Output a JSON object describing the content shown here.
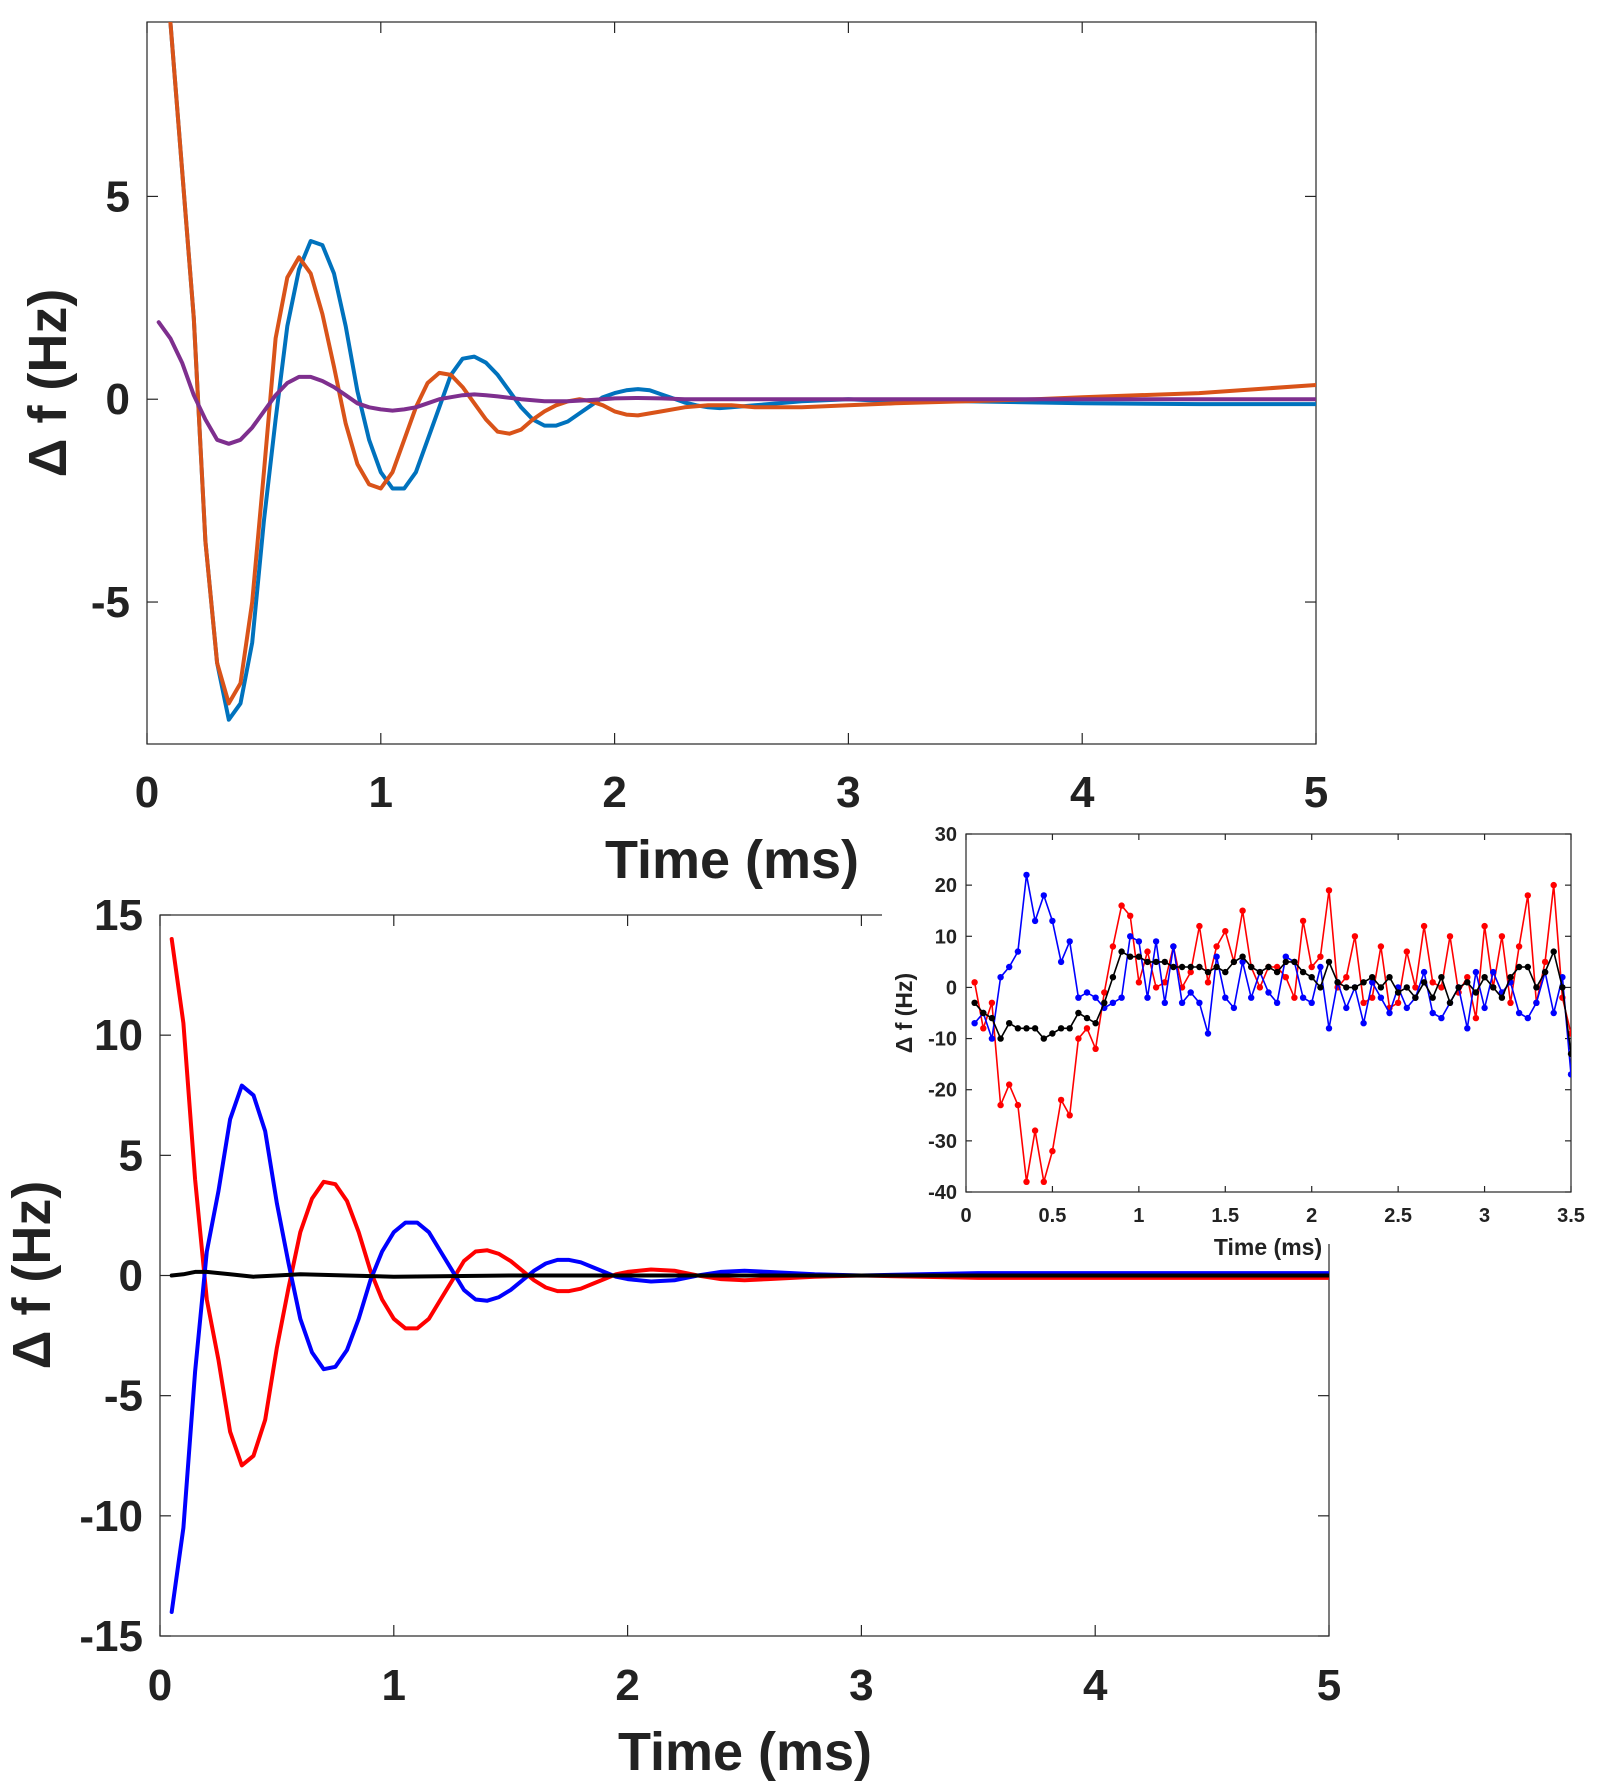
{
  "chart_data": [
    {
      "type": "line",
      "xlabel": "Time (ms)",
      "ylabel": "Δ f (Hz)",
      "xlim": [
        0,
        5
      ],
      "ylim": [
        -8.5,
        9.3
      ],
      "xticks": [
        0,
        1,
        2,
        3,
        4,
        5
      ],
      "yticks": [
        -5,
        0,
        5
      ],
      "grid": false,
      "series": [
        {
          "color": "#0072BD",
          "x": [
            0.1,
            0.2,
            0.25,
            0.3,
            0.35,
            0.4,
            0.45,
            0.5,
            0.55,
            0.6,
            0.65,
            0.7,
            0.75,
            0.8,
            0.85,
            0.9,
            0.95,
            1.0,
            1.05,
            1.1,
            1.15,
            1.2,
            1.25,
            1.3,
            1.35,
            1.4,
            1.45,
            1.5,
            1.55,
            1.6,
            1.65,
            1.7,
            1.75,
            1.8,
            1.85,
            1.9,
            1.95,
            2.0,
            2.05,
            2.1,
            2.15,
            2.2,
            2.25,
            2.3,
            2.35,
            2.4,
            2.45,
            2.5,
            2.6,
            2.8,
            3.0,
            3.2,
            3.5,
            4.0,
            4.5,
            5.0
          ],
          "y": [
            9.3,
            2.0,
            -3.5,
            -6.5,
            -7.9,
            -7.5,
            -6.0,
            -3.0,
            -0.5,
            1.8,
            3.2,
            3.9,
            3.8,
            3.1,
            1.8,
            0.2,
            -1.0,
            -1.8,
            -2.2,
            -2.2,
            -1.8,
            -1.0,
            -0.2,
            0.6,
            1.0,
            1.05,
            0.9,
            0.6,
            0.2,
            -0.2,
            -0.5,
            -0.65,
            -0.65,
            -0.55,
            -0.35,
            -0.15,
            0.05,
            0.15,
            0.22,
            0.25,
            0.22,
            0.12,
            0.02,
            -0.08,
            -0.15,
            -0.2,
            -0.22,
            -0.2,
            -0.15,
            -0.05,
            0.0,
            -0.05,
            -0.05,
            -0.1,
            -0.12,
            -0.12
          ]
        },
        {
          "color": "#D95319",
          "x": [
            0.1,
            0.2,
            0.25,
            0.3,
            0.35,
            0.4,
            0.45,
            0.5,
            0.55,
            0.6,
            0.65,
            0.7,
            0.75,
            0.8,
            0.85,
            0.9,
            0.95,
            1.0,
            1.05,
            1.1,
            1.15,
            1.2,
            1.25,
            1.3,
            1.35,
            1.4,
            1.45,
            1.5,
            1.55,
            1.6,
            1.65,
            1.7,
            1.75,
            1.8,
            1.85,
            1.9,
            1.95,
            2.0,
            2.05,
            2.1,
            2.2,
            2.3,
            2.4,
            2.5,
            2.6,
            2.8,
            3.0,
            3.2,
            3.5,
            3.8,
            4.0,
            4.5,
            5.0
          ],
          "y": [
            9.3,
            2.0,
            -3.5,
            -6.5,
            -7.5,
            -7.0,
            -5.0,
            -1.8,
            1.5,
            3.0,
            3.5,
            3.1,
            2.1,
            0.8,
            -0.6,
            -1.6,
            -2.1,
            -2.2,
            -1.8,
            -1.0,
            -0.2,
            0.4,
            0.65,
            0.6,
            0.3,
            -0.1,
            -0.5,
            -0.8,
            -0.85,
            -0.75,
            -0.5,
            -0.3,
            -0.15,
            -0.05,
            0.0,
            -0.05,
            -0.15,
            -0.3,
            -0.38,
            -0.4,
            -0.3,
            -0.2,
            -0.15,
            -0.15,
            -0.2,
            -0.2,
            -0.15,
            -0.1,
            -0.05,
            0.0,
            0.05,
            0.15,
            0.35
          ]
        },
        {
          "color": "#7E2F8E",
          "x": [
            0.05,
            0.1,
            0.15,
            0.2,
            0.25,
            0.3,
            0.35,
            0.4,
            0.45,
            0.5,
            0.55,
            0.6,
            0.65,
            0.7,
            0.75,
            0.8,
            0.85,
            0.9,
            0.95,
            1.0,
            1.05,
            1.1,
            1.15,
            1.2,
            1.25,
            1.3,
            1.35,
            1.4,
            1.45,
            1.5,
            1.6,
            1.7,
            1.8,
            1.9,
            2.0,
            2.1,
            2.2,
            2.3,
            2.5,
            3.0,
            3.5,
            4.0,
            4.5,
            5.0
          ],
          "y": [
            1.9,
            1.5,
            0.9,
            0.1,
            -0.5,
            -1.0,
            -1.1,
            -1.0,
            -0.7,
            -0.3,
            0.1,
            0.4,
            0.55,
            0.55,
            0.45,
            0.3,
            0.1,
            -0.1,
            -0.2,
            -0.25,
            -0.28,
            -0.25,
            -0.2,
            -0.1,
            0.0,
            0.05,
            0.1,
            0.12,
            0.1,
            0.07,
            0.0,
            -0.05,
            -0.05,
            -0.02,
            0.02,
            0.03,
            0.02,
            0.0,
            0.0,
            0.0,
            0.0,
            0.0,
            0.0,
            0.0
          ]
        }
      ]
    },
    {
      "type": "line",
      "xlabel": "Time (ms)",
      "ylabel": "Δ f (Hz)",
      "xlim": [
        0,
        5
      ],
      "ylim": [
        -15,
        15
      ],
      "xticks": [
        0,
        1,
        2,
        3,
        4,
        5
      ],
      "yticks": [
        -15,
        -10,
        -5,
        0,
        5,
        10,
        15
      ],
      "grid": false,
      "series": [
        {
          "color": "#FF0000",
          "x": [
            0.05,
            0.1,
            0.15,
            0.2,
            0.25,
            0.3,
            0.35,
            0.4,
            0.45,
            0.5,
            0.55,
            0.6,
            0.65,
            0.7,
            0.75,
            0.8,
            0.85,
            0.9,
            0.95,
            1.0,
            1.05,
            1.1,
            1.15,
            1.2,
            1.25,
            1.3,
            1.35,
            1.4,
            1.45,
            1.5,
            1.55,
            1.6,
            1.65,
            1.7,
            1.75,
            1.8,
            1.85,
            1.9,
            1.95,
            2.0,
            2.1,
            2.2,
            2.3,
            2.4,
            2.5,
            2.6,
            2.8,
            3.0,
            3.5,
            4.0,
            4.5,
            5.0
          ],
          "y": [
            14.0,
            10.5,
            4.0,
            -1.0,
            -3.5,
            -6.5,
            -7.9,
            -7.5,
            -6.0,
            -3.0,
            -0.5,
            1.8,
            3.2,
            3.9,
            3.8,
            3.1,
            1.8,
            0.2,
            -1.0,
            -1.8,
            -2.2,
            -2.2,
            -1.8,
            -1.0,
            -0.2,
            0.6,
            1.0,
            1.05,
            0.9,
            0.6,
            0.2,
            -0.2,
            -0.5,
            -0.65,
            -0.65,
            -0.55,
            -0.35,
            -0.15,
            0.05,
            0.15,
            0.25,
            0.2,
            0.0,
            -0.15,
            -0.2,
            -0.15,
            -0.05,
            0.0,
            -0.1,
            -0.1,
            -0.1,
            -0.1
          ]
        },
        {
          "color": "#0000FF",
          "x": [
            0.05,
            0.1,
            0.15,
            0.2,
            0.25,
            0.3,
            0.35,
            0.4,
            0.45,
            0.5,
            0.55,
            0.6,
            0.65,
            0.7,
            0.75,
            0.8,
            0.85,
            0.9,
            0.95,
            1.0,
            1.05,
            1.1,
            1.15,
            1.2,
            1.25,
            1.3,
            1.35,
            1.4,
            1.45,
            1.5,
            1.55,
            1.6,
            1.65,
            1.7,
            1.75,
            1.8,
            1.85,
            1.9,
            1.95,
            2.0,
            2.1,
            2.2,
            2.3,
            2.4,
            2.5,
            2.6,
            2.8,
            3.0,
            3.5,
            4.0,
            4.5,
            5.0
          ],
          "y": [
            -14.0,
            -10.5,
            -4.0,
            1.0,
            3.5,
            6.5,
            7.9,
            7.5,
            6.0,
            3.0,
            0.5,
            -1.8,
            -3.2,
            -3.9,
            -3.8,
            -3.1,
            -1.8,
            -0.2,
            1.0,
            1.8,
            2.2,
            2.2,
            1.8,
            1.0,
            0.2,
            -0.6,
            -1.0,
            -1.05,
            -0.9,
            -0.6,
            -0.2,
            0.2,
            0.5,
            0.65,
            0.65,
            0.55,
            0.35,
            0.15,
            -0.05,
            -0.15,
            -0.25,
            -0.2,
            0.0,
            0.15,
            0.2,
            0.15,
            0.05,
            0.0,
            0.1,
            0.1,
            0.1,
            0.1
          ]
        },
        {
          "color": "#000000",
          "x": [
            0.05,
            0.1,
            0.15,
            0.2,
            0.3,
            0.4,
            0.5,
            0.6,
            0.8,
            1.0,
            1.5,
            2.0,
            3.0,
            4.0,
            5.0
          ],
          "y": [
            0.0,
            0.05,
            0.15,
            0.15,
            0.05,
            -0.05,
            0.0,
            0.05,
            0.0,
            -0.05,
            0.0,
            0.0,
            0.0,
            0.0,
            0.0
          ]
        }
      ]
    },
    {
      "type": "line",
      "xlabel": "Time (ms)",
      "ylabel": "Δ f (Hz)",
      "xlim": [
        0,
        3.5
      ],
      "ylim": [
        -40,
        30
      ],
      "xticks": [
        0,
        0.5,
        1,
        1.5,
        2,
        2.5,
        3,
        3.5
      ],
      "xtick_labels": [
        "0",
        "0.5",
        "1",
        "1.5",
        "2",
        "2.5",
        "3",
        "3.5"
      ],
      "yticks": [
        -40,
        -30,
        -20,
        -10,
        0,
        10,
        20,
        30
      ],
      "grid": false,
      "markers": true,
      "series": [
        {
          "color": "#FF0000",
          "x": [
            0.05,
            0.1,
            0.15,
            0.2,
            0.25,
            0.3,
            0.35,
            0.4,
            0.45,
            0.5,
            0.55,
            0.6,
            0.65,
            0.7,
            0.75,
            0.8,
            0.85,
            0.9,
            0.95,
            1.0,
            1.05,
            1.1,
            1.15,
            1.2,
            1.25,
            1.3,
            1.35,
            1.4,
            1.45,
            1.5,
            1.55,
            1.6,
            1.65,
            1.7,
            1.75,
            1.8,
            1.85,
            1.9,
            1.95,
            2.0,
            2.05,
            2.1,
            2.15,
            2.2,
            2.25,
            2.3,
            2.35,
            2.4,
            2.45,
            2.5,
            2.55,
            2.6,
            2.65,
            2.7,
            2.75,
            2.8,
            2.85,
            2.9,
            2.95,
            3.0,
            3.05,
            3.1,
            3.15,
            3.2,
            3.25,
            3.3,
            3.35,
            3.4,
            3.45,
            3.5
          ],
          "y": [
            1,
            -8,
            -3,
            -23,
            -19,
            -23,
            -38,
            -28,
            -38,
            -32,
            -22,
            -25,
            -10,
            -8,
            -12,
            -1,
            8,
            16,
            14,
            1,
            7,
            0,
            1,
            8,
            0,
            3,
            12,
            1,
            8,
            11,
            5,
            15,
            4,
            0,
            4,
            4,
            2,
            -2,
            13,
            4,
            6,
            19,
            0,
            2,
            10,
            -3,
            -2,
            8,
            -4,
            -3,
            7,
            0,
            12,
            1,
            0,
            10,
            -1,
            2,
            -6,
            12,
            0,
            10,
            -3,
            8,
            18,
            -3,
            5,
            20,
            -2,
            -9
          ]
        },
        {
          "color": "#0000FF",
          "x": [
            0.05,
            0.1,
            0.15,
            0.2,
            0.25,
            0.3,
            0.35,
            0.4,
            0.45,
            0.5,
            0.55,
            0.6,
            0.65,
            0.7,
            0.75,
            0.8,
            0.85,
            0.9,
            0.95,
            1.0,
            1.05,
            1.1,
            1.15,
            1.2,
            1.25,
            1.3,
            1.35,
            1.4,
            1.45,
            1.5,
            1.55,
            1.6,
            1.65,
            1.7,
            1.75,
            1.8,
            1.85,
            1.9,
            1.95,
            2.0,
            2.05,
            2.1,
            2.15,
            2.2,
            2.25,
            2.3,
            2.35,
            2.4,
            2.45,
            2.5,
            2.55,
            2.6,
            2.65,
            2.7,
            2.75,
            2.8,
            2.85,
            2.9,
            2.95,
            3.0,
            3.05,
            3.1,
            3.15,
            3.2,
            3.25,
            3.3,
            3.35,
            3.4,
            3.45,
            3.5
          ],
          "y": [
            -7,
            -5,
            -10,
            2,
            4,
            7,
            22,
            13,
            18,
            13,
            5,
            9,
            -2,
            -1,
            -2,
            -4,
            -3,
            -2,
            10,
            9,
            -2,
            9,
            -3,
            8,
            -3,
            -1,
            -3,
            -9,
            6,
            -2,
            -4,
            5,
            -2,
            3,
            -1,
            -3,
            6,
            5,
            -2,
            -3,
            4,
            -8,
            1,
            -4,
            0,
            -7,
            1,
            -2,
            -5,
            0,
            -4,
            -2,
            3,
            -5,
            -6,
            -3,
            0,
            -8,
            3,
            -4,
            3,
            -1,
            1,
            -5,
            -6,
            -3,
            3,
            -5,
            2,
            -17
          ]
        },
        {
          "color": "#000000",
          "x": [
            0.05,
            0.1,
            0.15,
            0.2,
            0.25,
            0.3,
            0.35,
            0.4,
            0.45,
            0.5,
            0.55,
            0.6,
            0.65,
            0.7,
            0.75,
            0.8,
            0.85,
            0.9,
            0.95,
            1.0,
            1.05,
            1.1,
            1.15,
            1.2,
            1.25,
            1.3,
            1.35,
            1.4,
            1.45,
            1.5,
            1.55,
            1.6,
            1.65,
            1.7,
            1.75,
            1.8,
            1.85,
            1.9,
            1.95,
            2.0,
            2.05,
            2.1,
            2.15,
            2.2,
            2.25,
            2.3,
            2.35,
            2.4,
            2.45,
            2.5,
            2.55,
            2.6,
            2.65,
            2.7,
            2.75,
            2.8,
            2.85,
            2.9,
            2.95,
            3.0,
            3.05,
            3.1,
            3.15,
            3.2,
            3.25,
            3.3,
            3.35,
            3.4,
            3.45,
            3.5
          ],
          "y": [
            -3,
            -5,
            -6,
            -10,
            -7,
            -8,
            -8,
            -8,
            -10,
            -9,
            -8,
            -8,
            -5,
            -6,
            -7,
            -3,
            2,
            7,
            6,
            6,
            5,
            5,
            5,
            4,
            4,
            4,
            4,
            3,
            4,
            3,
            5,
            6,
            4,
            3,
            4,
            3,
            5,
            5,
            3,
            2,
            0,
            5,
            1,
            0,
            0,
            1,
            2,
            0,
            2,
            -1,
            0,
            -2,
            1,
            -2,
            2,
            -3,
            0,
            1,
            -1,
            2,
            0,
            -2,
            2,
            4,
            4,
            0,
            3,
            7,
            0,
            -13
          ]
        }
      ]
    }
  ]
}
